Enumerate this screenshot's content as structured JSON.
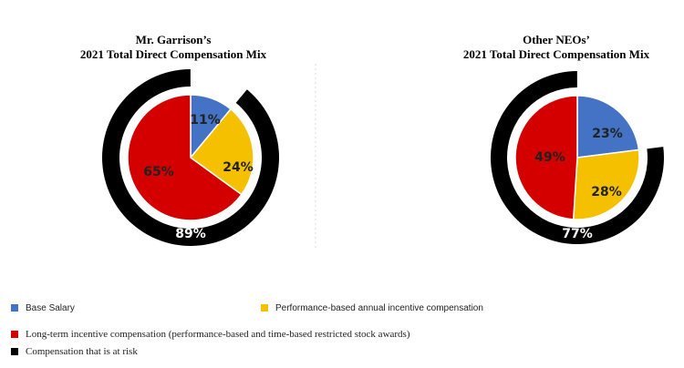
{
  "chart_data": [
    {
      "type": "pie",
      "title_line1": "Mr. Garrison’s",
      "title_line2": "2021 Total Direct Compensation Mix",
      "categories": [
        "Base Salary",
        "Performance-based annual incentive compensation",
        "Long-term incentive compensation (performance-based and time-based restricted stock awards)"
      ],
      "values": [
        11,
        24,
        65
      ],
      "labels": [
        "11%",
        "24%",
        "65%"
      ],
      "at_risk_value": 89,
      "at_risk_label": "89%"
    },
    {
      "type": "pie",
      "title_line1": "Other NEOs’",
      "title_line2": "2021 Total Direct Compensation Mix",
      "categories": [
        "Base Salary",
        "Performance-based annual incentive compensation",
        "Long-term incentive compensation (performance-based and time-based restricted stock awards)"
      ],
      "values": [
        23,
        28,
        49
      ],
      "labels": [
        "23%",
        "28%",
        "49%"
      ],
      "at_risk_value": 77,
      "at_risk_label": "77%"
    }
  ],
  "colors": {
    "base": "#4472c4",
    "performance": "#f5c000",
    "long_term": "#d40000",
    "at_risk": "#000000"
  },
  "legend": {
    "base": "Base Salary",
    "performance": "Performance-based annual incentive compensation",
    "long_term": "Long-term incentive compensation (performance-based and time-based restricted stock awards)",
    "at_risk": "Compensation that is at risk"
  }
}
